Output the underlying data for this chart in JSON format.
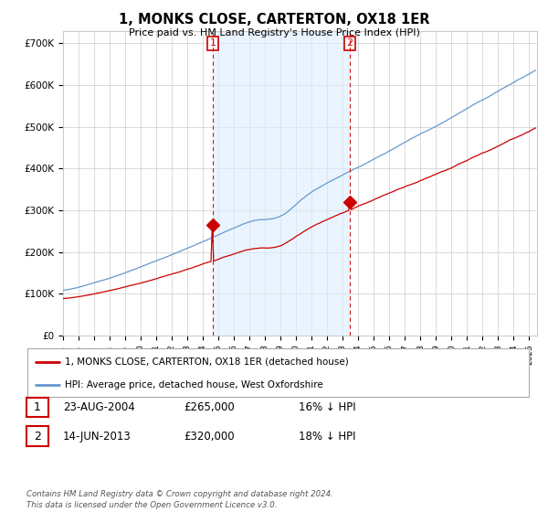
{
  "title": "1, MONKS CLOSE, CARTERTON, OX18 1ER",
  "subtitle": "Price paid vs. HM Land Registry's House Price Index (HPI)",
  "ylabel_ticks": [
    "£0",
    "£100K",
    "£200K",
    "£300K",
    "£400K",
    "£500K",
    "£600K",
    "£700K"
  ],
  "ytick_vals": [
    0,
    100000,
    200000,
    300000,
    400000,
    500000,
    600000,
    700000
  ],
  "ylim": [
    0,
    730000
  ],
  "xlim_start": 1995.0,
  "xlim_end": 2025.5,
  "marker1_x": 2004.64,
  "marker1_y": 265000,
  "marker2_x": 2013.45,
  "marker2_y": 320000,
  "vline1_x": 2004.64,
  "vline2_x": 2013.45,
  "legend_red": "1, MONKS CLOSE, CARTERTON, OX18 1ER (detached house)",
  "legend_blue": "HPI: Average price, detached house, West Oxfordshire",
  "table_row1": [
    "1",
    "23-AUG-2004",
    "£265,000",
    "16% ↓ HPI"
  ],
  "table_row2": [
    "2",
    "14-JUN-2013",
    "£320,000",
    "18% ↓ HPI"
  ],
  "footnote": "Contains HM Land Registry data © Crown copyright and database right 2024.\nThis data is licensed under the Open Government Licence v3.0.",
  "red_color": "#cc0000",
  "blue_color": "#6699cc",
  "shade_color": "#ddeeff",
  "vline_color": "#cc0000",
  "plot_bg": "#ffffff",
  "grid_color": "#cccccc"
}
